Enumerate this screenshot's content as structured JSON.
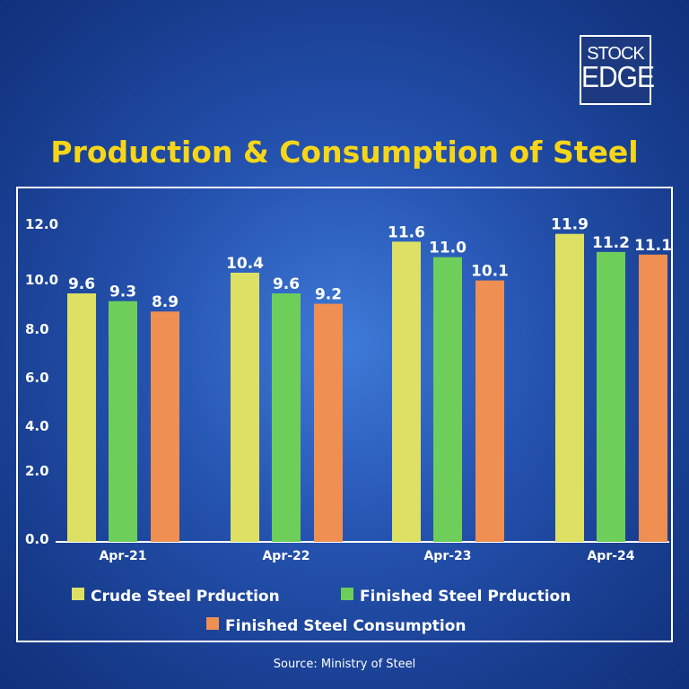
{
  "logo": {
    "line1": "STOCK",
    "line2": "EDGE"
  },
  "title": "Production & Consumption of Steel",
  "source": "Source: Ministry of Steel",
  "colors": {
    "crude": "#dde063",
    "finished_prod": "#6dcf5a",
    "finished_cons": "#ef8f52",
    "title": "#f6d617"
  },
  "chart_data": {
    "type": "bar",
    "categories": [
      "Apr-21",
      "Apr-22",
      "Apr-23",
      "Apr-24"
    ],
    "series": [
      {
        "name": "Crude Steel Prduction",
        "values": [
          9.6,
          10.4,
          11.6,
          11.9
        ]
      },
      {
        "name": "Finished Steel Prduction",
        "values": [
          9.3,
          9.6,
          11.0,
          11.2
        ]
      },
      {
        "name": "Finished Steel Consumption",
        "values": [
          8.9,
          9.2,
          10.1,
          11.1
        ]
      }
    ],
    "yticks": [
      "0.0",
      "2.0",
      "4.0",
      "6.0",
      "8.0",
      "10.0",
      "12.0"
    ],
    "ylim": [
      0,
      12
    ],
    "grid": false,
    "legend": "bottom"
  }
}
